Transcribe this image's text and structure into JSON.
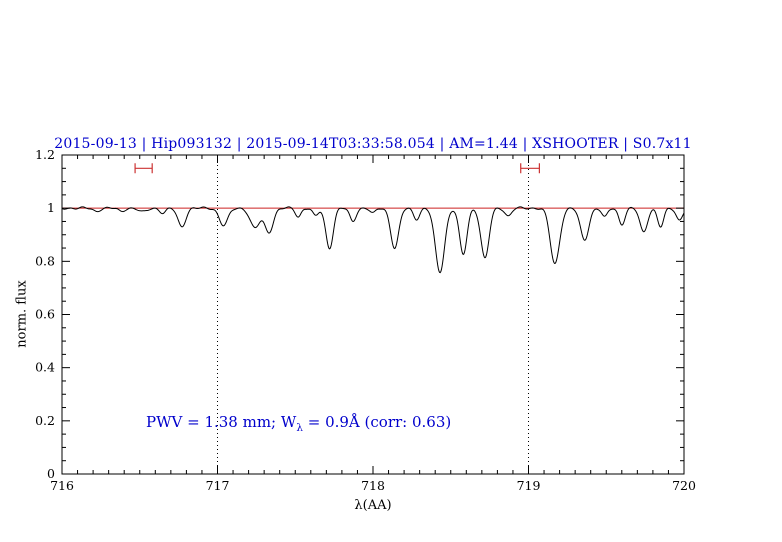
{
  "header": {
    "title": "2015-09-13 | Hip093132 | 2015-09-14T03:33:58.054 | AM=1.44 | XSHOOTER | S0.7x11"
  },
  "annotation": {
    "part1": "PWV = 1.38 mm; W",
    "subscript": "λ",
    "part2": " = 0.9Å (corr: 0.63)"
  },
  "colors": {
    "title": "#0000cc",
    "annotation": "#0000cc",
    "continuum_line": "#cc2222",
    "range_marker": "#cc3333",
    "spectrum": "#000000",
    "frame": "#000000",
    "dotted_guide": "#000000"
  },
  "chart_data": {
    "type": "line",
    "title": "2015-09-13 | Hip093132 | 2015-09-14T03:33:58.054 | AM=1.44 | XSHOOTER | S0.7x11",
    "xlabel": "λ(AA)",
    "ylabel": "norm. flux",
    "xlim": [
      716,
      720
    ],
    "ylim": [
      0,
      1.2
    ],
    "xticks": [
      716,
      717,
      718,
      719,
      720
    ],
    "xtick_labels": [
      "716",
      "717",
      "718",
      "719",
      "720"
    ],
    "yticks": [
      0,
      0.2,
      0.4,
      0.6,
      0.8,
      1,
      1.2
    ],
    "ytick_labels": [
      "0",
      "0.2",
      "0.4",
      "0.6",
      "0.8",
      "1",
      "1.2"
    ],
    "x_minor_step": 0.1,
    "y_minor_step": 0.05,
    "grid": false,
    "guide_vlines": [
      717,
      719
    ],
    "legend": "none",
    "continuum_level": 1.0,
    "noise_amplitude": 0.003,
    "range_markers": [
      {
        "x1": 716.47,
        "x2": 716.58,
        "y": 1.15
      },
      {
        "x1": 718.95,
        "x2": 719.07,
        "y": 1.15
      }
    ],
    "absorption_lines": [
      {
        "center": 716.22,
        "depth": 0.012,
        "sigma": 0.02
      },
      {
        "center": 716.38,
        "depth": 0.012,
        "sigma": 0.02
      },
      {
        "center": 716.52,
        "depth": 0.015,
        "sigma": 0.025
      },
      {
        "center": 716.65,
        "depth": 0.018,
        "sigma": 0.02
      },
      {
        "center": 716.77,
        "depth": 0.07,
        "sigma": 0.025
      },
      {
        "center": 717.04,
        "depth": 0.065,
        "sigma": 0.028
      },
      {
        "center": 717.24,
        "depth": 0.075,
        "sigma": 0.03
      },
      {
        "center": 717.33,
        "depth": 0.09,
        "sigma": 0.028
      },
      {
        "center": 717.52,
        "depth": 0.032,
        "sigma": 0.018
      },
      {
        "center": 717.63,
        "depth": 0.03,
        "sigma": 0.018
      },
      {
        "center": 717.72,
        "depth": 0.15,
        "sigma": 0.024
      },
      {
        "center": 717.87,
        "depth": 0.05,
        "sigma": 0.02
      },
      {
        "center": 718.0,
        "depth": 0.02,
        "sigma": 0.018
      },
      {
        "center": 718.14,
        "depth": 0.15,
        "sigma": 0.026
      },
      {
        "center": 718.28,
        "depth": 0.04,
        "sigma": 0.02
      },
      {
        "center": 718.43,
        "depth": 0.24,
        "sigma": 0.03
      },
      {
        "center": 718.58,
        "depth": 0.175,
        "sigma": 0.024
      },
      {
        "center": 718.72,
        "depth": 0.19,
        "sigma": 0.026
      },
      {
        "center": 718.87,
        "depth": 0.03,
        "sigma": 0.02
      },
      {
        "center": 719.17,
        "depth": 0.21,
        "sigma": 0.03
      },
      {
        "center": 719.36,
        "depth": 0.12,
        "sigma": 0.027
      },
      {
        "center": 719.49,
        "depth": 0.035,
        "sigma": 0.018
      },
      {
        "center": 719.6,
        "depth": 0.06,
        "sigma": 0.02
      },
      {
        "center": 719.74,
        "depth": 0.09,
        "sigma": 0.024
      },
      {
        "center": 719.85,
        "depth": 0.07,
        "sigma": 0.02
      },
      {
        "center": 719.97,
        "depth": 0.045,
        "sigma": 0.02
      }
    ]
  }
}
